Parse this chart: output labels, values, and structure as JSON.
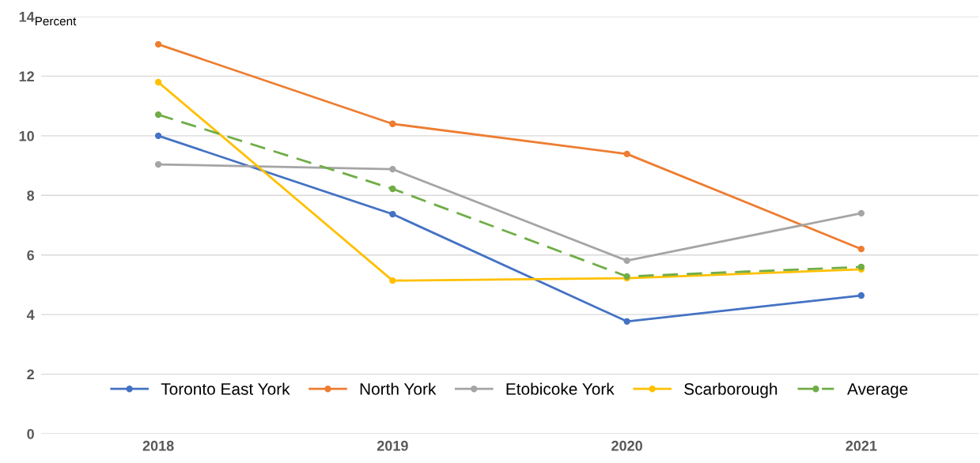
{
  "chart_data": {
    "type": "line",
    "ylabel": "Percent",
    "categories": [
      "2018",
      "2019",
      "2020",
      "2021"
    ],
    "ylim": [
      0,
      14
    ],
    "yticks": [
      0,
      2,
      4,
      6,
      8,
      10,
      12,
      14
    ],
    "grid": "y",
    "legend": "bottom",
    "marker": "circle",
    "series": [
      {
        "name": "Toronto East York",
        "color": "#4472c4",
        "values": [
          10.0,
          7.37,
          3.77,
          4.64
        ]
      },
      {
        "name": "North York",
        "color": "#ed7d31",
        "values": [
          13.07,
          10.4,
          9.39,
          6.2
        ]
      },
      {
        "name": "Etobicoke York",
        "color": "#a5a5a5",
        "values": [
          9.04,
          8.88,
          5.81,
          7.4
        ]
      },
      {
        "name": "Scarborough",
        "color": "#ffc000",
        "values": [
          11.8,
          5.14,
          5.22,
          5.52
        ]
      },
      {
        "name": "Average",
        "color": "#70ad47",
        "values": [
          10.71,
          8.22,
          5.28,
          5.6
        ],
        "line_style": "dashed"
      }
    ]
  }
}
